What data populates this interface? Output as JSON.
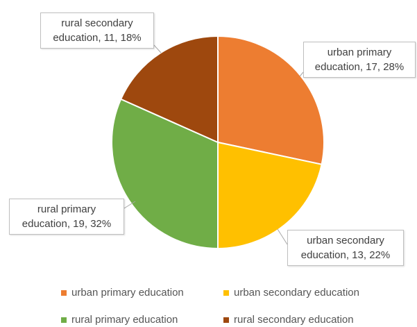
{
  "chart_data": {
    "type": "pie",
    "title": "",
    "slices": [
      {
        "label": "urban primary education",
        "value": 17,
        "percent": "28%",
        "color": "#ED7D31"
      },
      {
        "label": "urban secondary education",
        "value": 13,
        "percent": "22%",
        "color": "#FFC000"
      },
      {
        "label": "rural primary education",
        "value": 19,
        "percent": "32%",
        "color": "#70AD47"
      },
      {
        "label": "rural secondary education",
        "value": 11,
        "percent": "18%",
        "color": "#9E480E"
      }
    ],
    "data_labels": [
      {
        "line1": "urban primary",
        "line2": "education, 17, 28%"
      },
      {
        "line1": "urban secondary",
        "line2": "education, 13, 22%"
      },
      {
        "line1": "rural primary",
        "line2": "education, 19, 32%"
      },
      {
        "line1": "rural secondary",
        "line2": "education, 11, 18%"
      }
    ],
    "legend": {
      "position": "bottom",
      "items": [
        "urban primary education",
        "urban secondary education",
        "rural primary education",
        "rural secondary education"
      ]
    }
  }
}
